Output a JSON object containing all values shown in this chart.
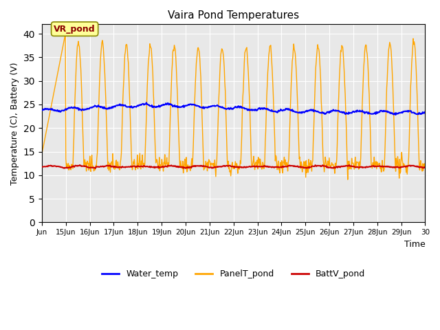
{
  "title": "Vaira Pond Temperatures",
  "xlabel": "Time",
  "ylabel": "Temperature (C), Battery (V)",
  "site_label": "VR_pond",
  "ylim": [
    0,
    42
  ],
  "yticks": [
    0,
    5,
    10,
    15,
    20,
    25,
    30,
    35,
    40
  ],
  "x_labels": [
    "Jun",
    "15Jun",
    "16Jun",
    "17Jun",
    "18Jun",
    "19Jun",
    "20Jun",
    "21Jun",
    "22Jun",
    "23Jun",
    "24Jun",
    "25Jun",
    "26Jun",
    "27Jun",
    "28Jun",
    "29Jun",
    "30"
  ],
  "water_color": "#0000ff",
  "panel_color": "#ffa500",
  "batt_color": "#cc0000",
  "bg_color": "#e8e8e8",
  "legend_labels": [
    "Water_temp",
    "PanelT_pond",
    "BattV_pond"
  ]
}
